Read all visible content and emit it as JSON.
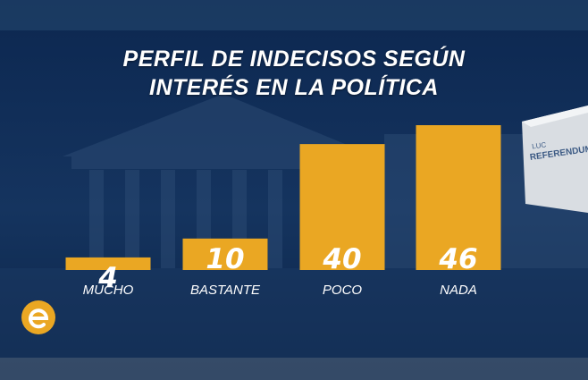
{
  "title_lines": [
    "PERFIL DE INDECISOS SEGÚN",
    "INTERÉS EN LA POLÍTICA"
  ],
  "chart_data": {
    "type": "bar",
    "title": "PERFIL DE INDECISOS SEGÚN INTERÉS EN LA POLÍTICA",
    "categories": [
      "MUCHO",
      "BASTANTE",
      "POCO",
      "NADA"
    ],
    "values": [
      4,
      10,
      40,
      46
    ],
    "ylim": [
      0,
      46
    ],
    "grid": false,
    "legend": "none",
    "bar_color": "#eaa723"
  },
  "ballot_box": {
    "lines": [
      "LUC",
      "REFERENDUM"
    ]
  },
  "logo": {
    "icon": "e-logo-icon",
    "color": "#eaa723"
  }
}
